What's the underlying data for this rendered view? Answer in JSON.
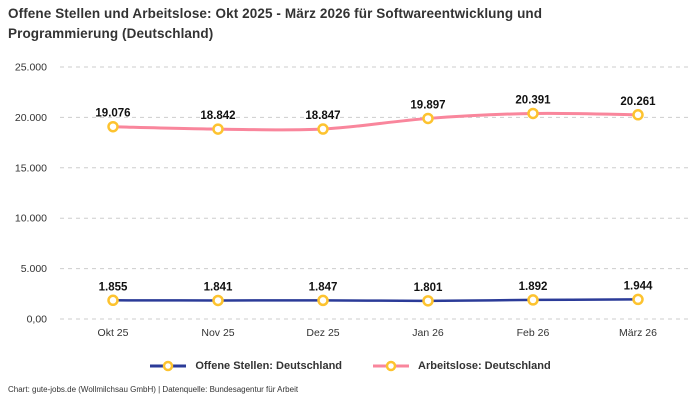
{
  "header": {
    "title": "Offene Stellen und Arbeitslose: Okt 2025 - März 2026 für Softwareentwicklung und Programmierung (Deutschland)"
  },
  "footer": {
    "credit": "Chart: gute-jobs.de (Wollmilchsau GmbH) | Datenquelle: Bundesagentur für Arbeit"
  },
  "colors": {
    "open_positions_line": "#2b3b98",
    "unemployed_line": "#f9869c",
    "marker_ring": "#fdc32f",
    "marker_fill": "#ffffff",
    "gridline": "#cdcdcd",
    "text": "#333333",
    "data_label": "#111111"
  },
  "chart_data": {
    "type": "line",
    "title": "Offene Stellen und Arbeitslose: Okt 2025 - März 2026 für Softwareentwicklung und Programmierung (Deutschland)",
    "categories": [
      "Okt 25",
      "Nov 25",
      "Dez 25",
      "Jan 26",
      "Feb 26",
      "März 26"
    ],
    "series": [
      {
        "name": "Offene Stellen: Deutschland",
        "color": "#2b3b98",
        "stroke_width": 2.5,
        "values": [
          1855,
          1841,
          1847,
          1801,
          1892,
          1944
        ],
        "labels": [
          "1.855",
          "1.841",
          "1.847",
          "1.801",
          "1.892",
          "1.944"
        ]
      },
      {
        "name": "Arbeitslose: Deutschland",
        "color": "#f9869c",
        "stroke_width": 3,
        "values": [
          19076,
          18842,
          18847,
          19897,
          20391,
          20261
        ],
        "labels": [
          "19.076",
          "18.842",
          "18.847",
          "19.897",
          "20.391",
          "20.261"
        ]
      }
    ],
    "y_ticks": [
      {
        "value": 0,
        "label": "0,00"
      },
      {
        "value": 5000,
        "label": "5.000"
      },
      {
        "value": 10000,
        "label": "10.000"
      },
      {
        "value": 15000,
        "label": "15.000"
      },
      {
        "value": 20000,
        "label": "20.000"
      },
      {
        "value": 25000,
        "label": "25.000"
      }
    ],
    "ylim": [
      0,
      25000
    ],
    "xlabel": "",
    "ylabel": "",
    "grid": "horizontal-dashed",
    "legend_position": "bottom",
    "data_labels": true
  }
}
